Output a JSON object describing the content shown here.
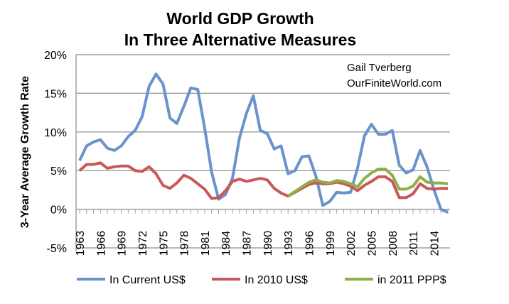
{
  "chart_data": {
    "type": "line",
    "title": [
      "World GDP Growth",
      "In Three Alternative Measures"
    ],
    "ylabel": "3-Year Average Growth Rate",
    "xlabel": "",
    "ylim": [
      -5,
      20
    ],
    "yticks": [
      "-5%",
      "0%",
      "5%",
      "10%",
      "15%",
      "20%"
    ],
    "ytick_values": [
      -5,
      0,
      5,
      10,
      15,
      20
    ],
    "x_start": 1963,
    "x_end": 2016,
    "xtick_labels": [
      "1963",
      "1966",
      "1969",
      "1972",
      "1975",
      "1978",
      "1981",
      "1984",
      "1987",
      "1990",
      "1993",
      "1996",
      "1999",
      "2002",
      "2005",
      "2008",
      "2011",
      "2014"
    ],
    "grid": true,
    "legend_position": "bottom",
    "annotation": [
      "Gail Tverberg",
      "OurFiniteWorld.com"
    ],
    "series": [
      {
        "name": "In Current US$",
        "color": "#6a93cc",
        "start": 1963,
        "values": [
          6.3,
          8.2,
          8.7,
          9.0,
          7.9,
          7.6,
          8.2,
          9.4,
          10.2,
          12.0,
          15.9,
          17.5,
          16.2,
          11.8,
          11.1,
          13.3,
          15.7,
          15.5,
          10.5,
          4.8,
          1.3,
          1.9,
          4.0,
          9.2,
          12.4,
          14.7,
          10.2,
          9.8,
          7.8,
          8.2,
          4.6,
          5.0,
          6.8,
          6.9,
          4.3,
          0.5,
          1.0,
          2.2,
          2.1,
          2.2,
          5.3,
          9.5,
          11.0,
          9.7,
          9.7,
          10.2,
          5.7,
          4.7,
          5.1,
          7.6,
          5.5,
          2.5,
          0.0,
          -0.4
        ]
      },
      {
        "name": "In 2010 US$",
        "color": "#c9585a",
        "start": 1963,
        "values": [
          5.0,
          5.8,
          5.8,
          6.0,
          5.3,
          5.5,
          5.6,
          5.6,
          5.0,
          4.9,
          5.5,
          4.6,
          3.1,
          2.7,
          3.4,
          4.4,
          4.0,
          3.3,
          2.6,
          1.4,
          1.5,
          2.4,
          3.6,
          3.9,
          3.6,
          3.8,
          4.0,
          3.8,
          2.7,
          2.1,
          1.7,
          2.2,
          2.7,
          3.2,
          3.4,
          3.3,
          3.3,
          3.5,
          3.3,
          3.0,
          2.4,
          3.1,
          3.6,
          4.2,
          4.2,
          3.6,
          1.5,
          1.5,
          2.0,
          3.3,
          2.7,
          2.6,
          2.7,
          2.7
        ]
      },
      {
        "name": "in 2011 PPP$",
        "color": "#8fb045",
        "start": 1993,
        "values": [
          1.7,
          2.3,
          2.9,
          3.5,
          3.8,
          3.5,
          3.4,
          3.7,
          3.6,
          3.3,
          2.9,
          4.0,
          4.7,
          5.2,
          5.2,
          4.4,
          2.6,
          2.6,
          3.0,
          4.2,
          3.5,
          3.4,
          3.4,
          3.3
        ]
      }
    ]
  }
}
